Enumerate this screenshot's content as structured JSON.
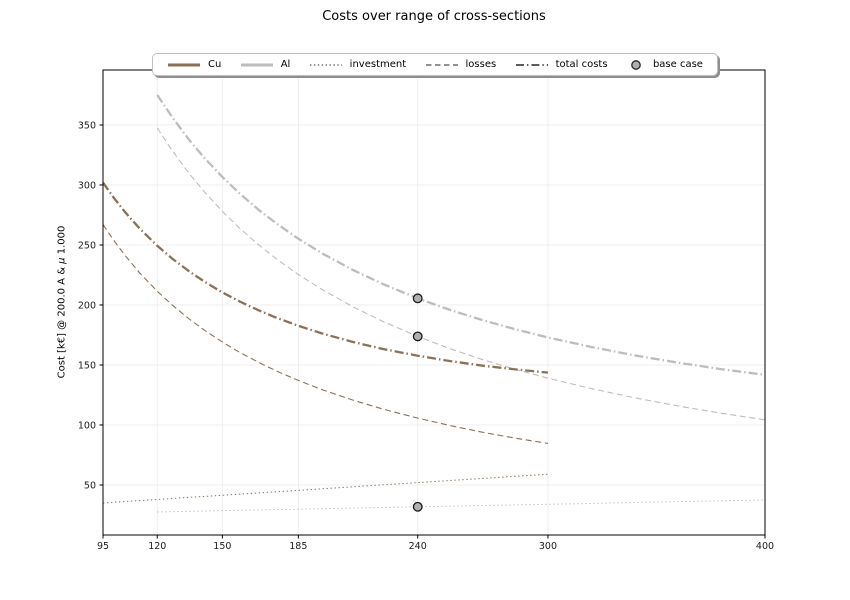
{
  "chart_data": {
    "type": "line",
    "title": "Costs over range of cross-sections",
    "xlabel": "",
    "ylabel": "Cost [k€] @ 200.0 A & μ 1.000",
    "ylabel_parts": {
      "prefix": "Cost [k€] @ 200.0 A & ",
      "mu": "μ",
      "suffix": " 1.000"
    },
    "xlim": [
      95,
      400
    ],
    "ylim": [
      8.3,
      395.8
    ],
    "x_ticks": [
      95,
      120,
      150,
      185,
      240,
      300,
      400
    ],
    "y_ticks": [
      50,
      100,
      150,
      200,
      250,
      300,
      350
    ],
    "grid": true,
    "colors": {
      "cu": "#8a7258",
      "al": "#bdbdbd",
      "grid": "#ededed",
      "spine": "#000000",
      "tick_text": "#1a1a1a",
      "style_key": "#262626",
      "marker_fill": "#b0b0b0",
      "marker_edge": "#1a1a1a"
    },
    "legend": {
      "position": "top-center",
      "items": [
        {
          "label": "Cu",
          "kind": "color",
          "style": "solid"
        },
        {
          "label": "Al",
          "kind": "color",
          "style": "solid"
        },
        {
          "label": "investment",
          "kind": "style",
          "style": "dotted"
        },
        {
          "label": "losses",
          "kind": "style",
          "style": "dashed"
        },
        {
          "label": "total costs",
          "kind": "style",
          "style": "dashdot"
        },
        {
          "label": "base case",
          "kind": "marker",
          "style": "circle"
        }
      ]
    },
    "series": [
      {
        "id": "cu-investment",
        "name": "Cu investment",
        "material": "Cu",
        "component": "investment",
        "style": "dotted",
        "width": 1.0,
        "x": [
          95,
          100,
          105,
          112,
          120,
          127,
          135,
          142,
          150,
          158,
          167,
          175,
          185,
          196,
          210,
          224,
          240,
          255,
          270,
          285,
          300
        ],
        "y": [
          35.0,
          35.6,
          36.2,
          37.0,
          37.9,
          38.7,
          39.7,
          40.5,
          41.4,
          42.4,
          43.4,
          44.4,
          45.5,
          46.8,
          48.5,
          50.1,
          52.0,
          53.7,
          55.5,
          57.2,
          59.0
        ]
      },
      {
        "id": "cu-losses",
        "name": "Cu losses",
        "material": "Cu",
        "component": "losses",
        "style": "dashed",
        "width": 1.1,
        "x": [
          95,
          100,
          105,
          112,
          120,
          127,
          135,
          142,
          150,
          158,
          167,
          175,
          185,
          196,
          210,
          224,
          240,
          255,
          270,
          285,
          300
        ],
        "y": [
          267.0,
          253.7,
          241.6,
          226.5,
          211.4,
          199.7,
          187.9,
          178.6,
          169.1,
          160.5,
          151.9,
          144.9,
          137.1,
          129.4,
          120.8,
          113.2,
          105.7,
          99.5,
          93.9,
          89.0,
          84.6
        ]
      },
      {
        "id": "cu-total",
        "name": "Cu total costs",
        "material": "Cu",
        "component": "total",
        "style": "dashdot",
        "width": 2.3,
        "x": [
          95,
          100,
          105,
          112,
          120,
          127,
          135,
          142,
          150,
          158,
          167,
          175,
          185,
          196,
          210,
          224,
          240,
          255,
          270,
          285,
          300
        ],
        "y": [
          302.0,
          289.2,
          277.7,
          263.5,
          249.3,
          238.5,
          227.6,
          219.1,
          210.5,
          202.9,
          195.3,
          189.3,
          182.6,
          176.2,
          169.2,
          163.3,
          157.7,
          153.2,
          149.4,
          146.3,
          143.6
        ]
      },
      {
        "id": "al-investment",
        "name": "Al investment",
        "material": "Al",
        "component": "investment",
        "style": "dotted",
        "width": 1.0,
        "x": [
          120,
          127,
          135,
          142,
          150,
          158,
          167,
          175,
          185,
          196,
          210,
          224,
          240,
          255,
          270,
          285,
          300,
          320,
          340,
          360,
          380,
          400
        ],
        "y": [
          27.5,
          27.8,
          28.0,
          28.3,
          28.6,
          28.9,
          29.2,
          29.5,
          29.8,
          30.2,
          30.7,
          31.2,
          31.8,
          32.3,
          32.9,
          33.4,
          33.9,
          34.6,
          35.4,
          36.1,
          36.8,
          37.5
        ]
      },
      {
        "id": "al-losses",
        "name": "Al losses",
        "material": "Al",
        "component": "losses",
        "style": "dashed",
        "width": 1.1,
        "x": [
          120,
          127,
          135,
          142,
          150,
          158,
          167,
          175,
          185,
          196,
          210,
          224,
          240,
          255,
          270,
          285,
          300,
          320,
          340,
          360,
          380,
          400
        ],
        "y": [
          347.5,
          328.3,
          308.9,
          293.7,
          278.0,
          263.9,
          249.7,
          238.3,
          225.4,
          212.8,
          198.6,
          186.2,
          173.8,
          163.5,
          154.4,
          146.3,
          139.0,
          130.3,
          122.6,
          115.8,
          109.7,
          104.3
        ]
      },
      {
        "id": "al-total",
        "name": "Al total costs",
        "material": "Al",
        "component": "total",
        "style": "dashdot",
        "width": 2.3,
        "x": [
          120,
          127,
          135,
          142,
          150,
          158,
          167,
          175,
          185,
          196,
          210,
          224,
          240,
          255,
          270,
          285,
          300,
          320,
          340,
          360,
          380,
          400
        ],
        "y": [
          375.0,
          356.1,
          336.9,
          322.0,
          306.6,
          292.8,
          278.9,
          267.8,
          255.2,
          243.0,
          229.3,
          217.4,
          205.5,
          195.8,
          187.3,
          179.7,
          172.9,
          165.0,
          158.0,
          151.9,
          146.5,
          141.8
        ]
      }
    ],
    "base_case": {
      "label": "base case",
      "cross_section": 240,
      "points": [
        [
          240,
          205.5
        ],
        [
          240,
          173.8
        ],
        [
          240,
          31.8
        ]
      ]
    }
  }
}
